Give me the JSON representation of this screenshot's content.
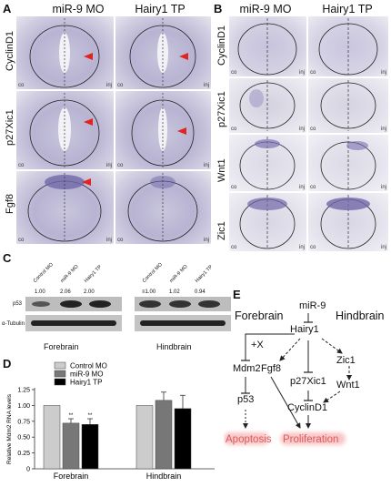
{
  "panelA": {
    "label": "A",
    "cols": [
      "miR-9 MO",
      "Hairy1 TP"
    ],
    "rows": [
      "CyclinD1",
      "p27Xic1",
      "Fgf8"
    ],
    "corner": {
      "left": "co",
      "right": "inj"
    }
  },
  "panelB": {
    "label": "B",
    "cols": [
      "miR-9 MO",
      "Hairy1 TP"
    ],
    "rows": [
      "CyclinD1",
      "p27Xic1",
      "Wnt1",
      "Zic1"
    ],
    "corner": {
      "left": "co",
      "right": "inj"
    }
  },
  "panelC": {
    "label": "C",
    "lanes": [
      "Control MO",
      "miR-9 MO",
      "Hairy1 TP",
      "Control MO",
      "miR-9 MO",
      "Hairy1 TP"
    ],
    "values": [
      "1.00",
      "2.06",
      "2.00",
      "≡1.00",
      "1.02",
      "0.94"
    ],
    "bands": [
      "p53",
      "α-Tubulin"
    ],
    "groups": [
      "Forebrain",
      "Hindbrain"
    ]
  },
  "panelD": {
    "label": "D",
    "chart_data": {
      "type": "bar",
      "categories": [
        "Forebrain",
        "Hindbrain"
      ],
      "series": [
        {
          "name": "Control MO",
          "values": [
            1.0,
            1.0
          ],
          "errors": [
            0,
            0
          ],
          "color": "#cccccc"
        },
        {
          "name": "miR-9 MO",
          "values": [
            0.72,
            1.08
          ],
          "errors": [
            0.07,
            0.13
          ],
          "color": "#777777"
        },
        {
          "name": "Hairy1 TP",
          "values": [
            0.7,
            0.95
          ],
          "errors": [
            0.09,
            0.21
          ],
          "color": "#000000"
        }
      ],
      "ylabel": "Relative Mdm2 RNA levels",
      "ylim": [
        0,
        1.25
      ],
      "yticks": [
        "0",
        "0.25",
        "0.50",
        "0.75",
        "1.00",
        "1.25"
      ],
      "significance": [
        "**",
        "**"
      ]
    }
  },
  "panelE": {
    "label": "E",
    "nodes": {
      "mir9": "miR-9",
      "hairy1": "Hairy1",
      "forebrain": "Forebrain",
      "hindbrain": "Hindbrain",
      "plusx": "+X",
      "mdm2": "Mdm2",
      "fgf8": "Fgf8",
      "p27": "p27Xic1",
      "zic1": "Zic1",
      "wnt1": "Wnt1",
      "p53": "p53",
      "cyclind1": "CyclinD1",
      "apoptosis": "Apoptosis",
      "proliferation": "Proliferation"
    },
    "colors": {
      "outcome": "#e05a5a"
    }
  }
}
